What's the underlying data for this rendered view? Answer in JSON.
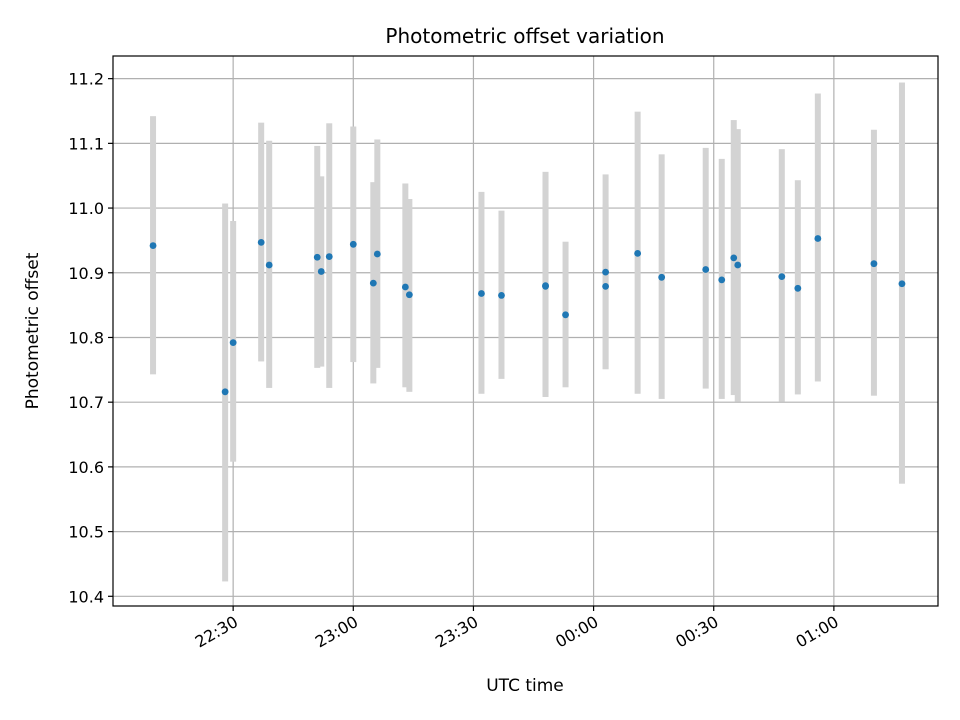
{
  "chart_data": {
    "type": "scatter",
    "title": "Photometric offset variation",
    "xlabel": "UTC time",
    "ylabel": "Photometric offset",
    "x_axis_kind": "time",
    "xlim": [
      "22:00",
      "01:26"
    ],
    "ylim": [
      10.385,
      11.235
    ],
    "yticks": [
      10.4,
      10.5,
      10.6,
      10.7,
      10.8,
      10.9,
      11.0,
      11.1,
      11.2
    ],
    "ytick_labels": [
      "10.4",
      "10.5",
      "10.6",
      "10.7",
      "10.8",
      "10.9",
      "11.0",
      "11.1",
      "11.2"
    ],
    "xticks": [
      "22:30",
      "23:00",
      "23:30",
      "00:00",
      "00:30",
      "01:00"
    ],
    "xtick_labels": [
      "22:30",
      "23:00",
      "23:30",
      "00:00",
      "00:30",
      "01:00"
    ],
    "grid": true,
    "colors": {
      "point": "#1f77b4",
      "errorbar": "#d3d3d3",
      "grid": "#b0b0b0"
    },
    "series": [
      {
        "x": [
          "22:10",
          "22:28",
          "22:30",
          "22:37",
          "22:39",
          "22:51",
          "22:52",
          "22:54",
          "23:00",
          "23:05",
          "23:06",
          "23:13",
          "23:14",
          "23:32",
          "23:37",
          "23:48",
          "23:48",
          "23:53",
          "00:03",
          "00:03",
          "00:11",
          "00:17",
          "00:28",
          "00:32",
          "00:35",
          "00:36",
          "00:47",
          "00:51",
          "00:56",
          "01:10",
          "01:17"
        ],
        "y": [
          10.942,
          10.716,
          10.792,
          10.947,
          10.912,
          10.924,
          10.902,
          10.925,
          10.944,
          10.884,
          10.929,
          10.878,
          10.866,
          10.868,
          10.865,
          10.879,
          10.88,
          10.835,
          10.879,
          10.901,
          10.93,
          10.893,
          10.905,
          10.889,
          10.923,
          10.912,
          10.894,
          10.876,
          10.953,
          10.914,
          10.883
        ],
        "yerr_low": [
          10.743,
          10.423,
          10.608,
          10.763,
          10.722,
          10.753,
          10.755,
          10.722,
          10.762,
          10.729,
          10.753,
          10.723,
          10.716,
          10.713,
          10.736,
          10.708,
          10.711,
          10.723,
          10.751,
          10.751,
          10.713,
          10.705,
          10.721,
          10.705,
          10.711,
          10.701,
          10.701,
          10.712,
          10.732,
          10.71,
          10.574
        ],
        "yerr_high": [
          11.142,
          11.007,
          10.98,
          11.132,
          11.104,
          11.096,
          11.049,
          11.131,
          11.126,
          11.04,
          11.106,
          11.038,
          11.014,
          11.025,
          10.996,
          11.056,
          11.05,
          10.948,
          11.005,
          11.052,
          11.149,
          11.083,
          11.093,
          11.076,
          11.136,
          11.122,
          11.091,
          11.043,
          11.177,
          11.121,
          11.194
        ]
      }
    ]
  }
}
